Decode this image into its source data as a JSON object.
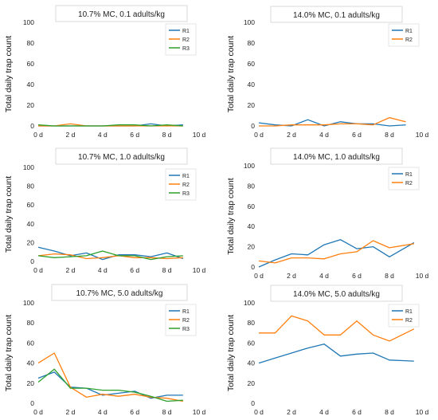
{
  "figure": {
    "ylabel": "Total daily trap count"
  },
  "chart_data": [
    {
      "type": "line",
      "title": "10.7% MC, 0.1 adults/kg",
      "ylabel": "Total daily trap count",
      "xlim": [
        0,
        10
      ],
      "ylim": [
        0,
        100
      ],
      "xticks": [
        0,
        2,
        4,
        6,
        8,
        10
      ],
      "xtick_labels": [
        "0 d",
        "2 d",
        "4 d",
        "6 d",
        "8 d",
        "10 d"
      ],
      "yticks": [
        0,
        20,
        40,
        60,
        80,
        100
      ],
      "legend_position": "top-right",
      "x": [
        0,
        1,
        2,
        3,
        4,
        5,
        6,
        7,
        8,
        9
      ],
      "series": [
        {
          "name": "R1",
          "color": "#1f77b4",
          "values": [
            0,
            0,
            0,
            0,
            0,
            0,
            0,
            2,
            0,
            1
          ]
        },
        {
          "name": "R2",
          "color": "#ff7f0e",
          "values": [
            0,
            0,
            2,
            0,
            0,
            0,
            0,
            0,
            0,
            0
          ]
        },
        {
          "name": "R3",
          "color": "#2ca02c",
          "values": [
            1,
            0,
            0,
            0,
            0,
            1,
            1,
            0,
            1,
            0
          ]
        }
      ]
    },
    {
      "type": "line",
      "title": "14.0% MC, 0.1 adults/kg",
      "ylabel": "Total daily trap count",
      "xlim": [
        0,
        10
      ],
      "ylim": [
        0,
        100
      ],
      "xticks": [
        0,
        2,
        4,
        6,
        8,
        10
      ],
      "xtick_labels": [
        "0 d",
        "2 d",
        "4 d",
        "6 d",
        "8 d",
        "10 d"
      ],
      "yticks": [
        0,
        20,
        40,
        60,
        80,
        100
      ],
      "legend_position": "top-right",
      "x": [
        0,
        1,
        2,
        3,
        4,
        5,
        6,
        7,
        8,
        9
      ],
      "series": [
        {
          "name": "R1",
          "color": "#1f77b4",
          "values": [
            3,
            1,
            0,
            6,
            0,
            4,
            2,
            2,
            0,
            1
          ]
        },
        {
          "name": "R2",
          "color": "#ff7f0e",
          "values": [
            0,
            0,
            1,
            1,
            1,
            2,
            2,
            1,
            8,
            4
          ]
        }
      ]
    },
    {
      "type": "line",
      "title": "10.7% MC, 1.0 adults/kg",
      "ylabel": "Total daily trap count",
      "xlim": [
        0,
        10
      ],
      "ylim": [
        0,
        100
      ],
      "xticks": [
        0,
        2,
        4,
        6,
        8,
        10
      ],
      "xtick_labels": [
        "0 d",
        "2 d",
        "4 d",
        "6 d",
        "8 d",
        "10 d"
      ],
      "yticks": [
        0,
        20,
        40,
        60,
        80,
        100
      ],
      "legend_position": "top-right",
      "x": [
        0,
        1,
        2,
        3,
        4,
        5,
        6,
        7,
        8,
        9
      ],
      "series": [
        {
          "name": "R1",
          "color": "#1f77b4",
          "values": [
            15,
            11,
            6,
            9,
            2,
            7,
            7,
            5,
            9,
            3
          ]
        },
        {
          "name": "R2",
          "color": "#ff7f0e",
          "values": [
            6,
            8,
            7,
            3,
            4,
            6,
            4,
            4,
            3,
            4
          ]
        },
        {
          "name": "R3",
          "color": "#2ca02c",
          "values": [
            6,
            4,
            5,
            6,
            11,
            6,
            6,
            2,
            5,
            6
          ]
        }
      ]
    },
    {
      "type": "line",
      "title": "14.0% MC, 1.0 adults/kg",
      "ylabel": "Total daily trap count",
      "xlim": [
        0,
        10
      ],
      "ylim": [
        0,
        100
      ],
      "xticks": [
        0,
        2,
        4,
        6,
        8,
        10
      ],
      "xtick_labels": [
        "0 d",
        "2 d",
        "4 d",
        "6 d",
        "8 d",
        "10 d"
      ],
      "yticks": [
        0,
        20,
        40,
        60,
        80,
        100
      ],
      "legend_position": "top-right",
      "x": [
        0,
        1,
        2,
        3,
        4,
        5,
        6,
        7,
        8,
        9.5
      ],
      "series": [
        {
          "name": "R1",
          "color": "#1f77b4",
          "values": [
            0,
            7,
            13,
            12,
            22,
            27,
            18,
            20,
            10,
            24
          ]
        },
        {
          "name": "R2",
          "color": "#ff7f0e",
          "values": [
            6,
            4,
            9,
            9,
            8,
            13,
            15,
            26,
            19,
            23
          ]
        }
      ]
    },
    {
      "type": "line",
      "title": "10.7% MC, 5.0 adults/kg",
      "ylabel": "Total daily trap count",
      "xlim": [
        0,
        10
      ],
      "ylim": [
        0,
        100
      ],
      "xticks": [
        0,
        2,
        4,
        6,
        8,
        10
      ],
      "xtick_labels": [
        "0 d",
        "2 d",
        "4 d",
        "6 d",
        "8 d",
        "10 d"
      ],
      "yticks": [
        0,
        20,
        40,
        60,
        80,
        100
      ],
      "legend_position": "top-right",
      "x": [
        0,
        1,
        2,
        3,
        4,
        5,
        6,
        7,
        8,
        9
      ],
      "series": [
        {
          "name": "R1",
          "color": "#1f77b4",
          "values": [
            25,
            31,
            16,
            15,
            8,
            10,
            12,
            5,
            8,
            8
          ]
        },
        {
          "name": "R2",
          "color": "#ff7f0e",
          "values": [
            40,
            50,
            16,
            6,
            9,
            7,
            9,
            6,
            5,
            2
          ]
        },
        {
          "name": "R3",
          "color": "#2ca02c",
          "values": [
            21,
            34,
            15,
            15,
            13,
            13,
            11,
            7,
            2,
            3
          ]
        }
      ]
    },
    {
      "type": "line",
      "title": "14.0% MC, 5.0 adults/kg",
      "ylabel": "Total daily trap count",
      "xlim": [
        0,
        10
      ],
      "ylim": [
        0,
        100
      ],
      "xticks": [
        0,
        2,
        4,
        6,
        8,
        10
      ],
      "xtick_labels": [
        "0 d",
        "2 d",
        "4 d",
        "6 d",
        "8 d",
        "10 d"
      ],
      "yticks": [
        0,
        20,
        40,
        60,
        80,
        100
      ],
      "legend_position": "top-right",
      "x": [
        0,
        1,
        2,
        3,
        4,
        5,
        6,
        7,
        8,
        9.5
      ],
      "series": [
        {
          "name": "R1",
          "color": "#1f77b4",
          "values": [
            40,
            45,
            50,
            55,
            59,
            47,
            49,
            50,
            43,
            42
          ]
        },
        {
          "name": "R2",
          "color": "#ff7f0e",
          "values": [
            70,
            70,
            87,
            82,
            68,
            68,
            82,
            68,
            62,
            74
          ]
        }
      ]
    }
  ]
}
